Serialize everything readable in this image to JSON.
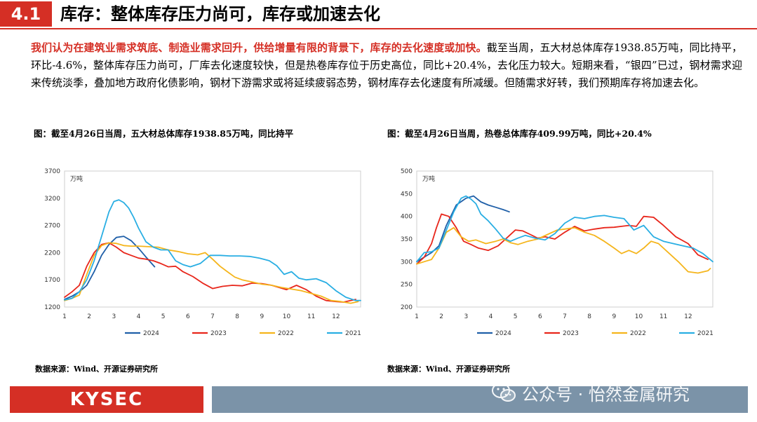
{
  "header": {
    "section_number": "4.1",
    "title": "库存：整体库存压力尚可，库存或加速去化"
  },
  "summary": {
    "highlight": "我们认为在建筑业需求筑底、制造业需求回升，供给增量有限的背景下，库存的去化速度或加快。",
    "body": "截至当周，五大材总体库存1938.85万吨，同比持平，环比-4.6%，整体库存压力尚可，厂库去化速度较快，但是热卷库存位于历史高位，同比+20.4%，去化压力较大。短期来看，“银四”已过，钢材需求迎来传统淡季，叠加地方政府化债影响，钢材下游需求或将延续疲弱态势，钢材库存去化速度有所减缓。但随需求好转，我们预期库存将加速去化。"
  },
  "figures": [
    {
      "caption": "图：截至4月26日当周，五大材总体库存1938.85万吨，同比持平",
      "source": "数据来源：Wind、开源证券研究所"
    },
    {
      "caption": "图：截至4月26日当周，热卷总体库存409.99万吨，同比+20.4%",
      "source": "数据来源：Wind、开源证券研究所"
    }
  ],
  "colors": {
    "accent": "#d52f25",
    "footer_right": "#7b93a8",
    "s2024": "#1f5fa8",
    "s2023": "#e8261b",
    "s2022": "#f5b51c",
    "s2021": "#29aee3"
  },
  "footer": {
    "logo": "KYSEC",
    "watermark": "公众号 · 怡然金属研究",
    "watermark_icon": "wechat-icon"
  },
  "chart_data": [
    {
      "type": "line",
      "title": "五大材总体库存",
      "ylabel": "万吨",
      "ylim": [
        1200,
        3700
      ],
      "yticks": [
        1200,
        1700,
        2200,
        2700,
        3200,
        3700
      ],
      "xlim": [
        1,
        13
      ],
      "xticks": [
        1,
        2,
        3,
        4,
        5,
        6,
        7,
        8,
        9,
        10,
        11,
        12
      ],
      "series": [
        {
          "name": "2024",
          "color": "#1f5fa8",
          "x": [
            1,
            1.3,
            1.6,
            1.9,
            2.2,
            2.5,
            2.8,
            3.1,
            3.4,
            3.7,
            4.0,
            4.3,
            4.65
          ],
          "y": [
            1340,
            1400,
            1480,
            1600,
            1850,
            2150,
            2350,
            2480,
            2500,
            2420,
            2280,
            2120,
            1940
          ]
        },
        {
          "name": "2023",
          "color": "#e8261b",
          "x": [
            1,
            1.3,
            1.6,
            1.9,
            2.2,
            2.5,
            2.8,
            3.1,
            3.4,
            3.7,
            4.0,
            4.3,
            4.6,
            4.9,
            5.2,
            5.5,
            5.8,
            6.2,
            6.6,
            7.0,
            7.4,
            7.8,
            8.2,
            8.6,
            9.0,
            9.4,
            9.7,
            10.0,
            10.4,
            10.8,
            11.2,
            11.6,
            12.0,
            12.3,
            12.8
          ],
          "y": [
            1380,
            1480,
            1600,
            1950,
            2200,
            2350,
            2380,
            2300,
            2200,
            2150,
            2100,
            2080,
            2050,
            2000,
            1940,
            1950,
            1850,
            1760,
            1640,
            1540,
            1580,
            1600,
            1590,
            1640,
            1630,
            1600,
            1560,
            1520,
            1600,
            1520,
            1400,
            1320,
            1300,
            1290,
            1340
          ]
        },
        {
          "name": "2022",
          "color": "#f5b51c",
          "x": [
            1,
            1.3,
            1.6,
            1.9,
            2.2,
            2.5,
            2.8,
            3.1,
            3.4,
            3.7,
            4.0,
            4.4,
            4.8,
            5.2,
            5.6,
            6.0,
            6.4,
            6.7,
            7.0,
            7.3,
            7.6,
            7.9,
            8.2,
            8.6,
            9.0,
            9.4,
            9.8,
            10.2,
            10.6,
            11.0,
            11.4,
            11.8,
            12.2,
            12.6,
            12.9
          ],
          "y": [
            1320,
            1360,
            1420,
            1800,
            2150,
            2330,
            2380,
            2370,
            2330,
            2320,
            2320,
            2310,
            2300,
            2250,
            2220,
            2180,
            2160,
            2200,
            2080,
            1950,
            1850,
            1750,
            1700,
            1660,
            1620,
            1600,
            1560,
            1530,
            1500,
            1450,
            1400,
            1320,
            1300,
            1270,
            1300
          ]
        },
        {
          "name": "2021",
          "color": "#29aee3",
          "x": [
            1,
            1.3,
            1.6,
            1.9,
            2.2,
            2.5,
            2.8,
            3.0,
            3.2,
            3.4,
            3.6,
            3.8,
            4.0,
            4.3,
            4.6,
            4.9,
            5.2,
            5.5,
            5.8,
            6.1,
            6.5,
            6.9,
            7.3,
            7.7,
            8.1,
            8.5,
            8.9,
            9.3,
            9.6,
            9.9,
            10.2,
            10.5,
            10.8,
            11.2,
            11.6,
            12.0,
            12.4,
            12.8,
            13.0
          ],
          "y": [
            1330,
            1360,
            1480,
            1700,
            2050,
            2500,
            2950,
            3140,
            3170,
            3120,
            3020,
            2850,
            2650,
            2400,
            2300,
            2250,
            2250,
            2050,
            1980,
            1940,
            2000,
            2150,
            2150,
            2140,
            2140,
            2130,
            2100,
            2050,
            1960,
            1800,
            1850,
            1730,
            1700,
            1720,
            1650,
            1500,
            1380,
            1320,
            1320
          ]
        }
      ]
    },
    {
      "type": "line",
      "title": "热卷总体库存",
      "ylabel": "万吨",
      "ylim": [
        200,
        500
      ],
      "yticks": [
        200,
        250,
        300,
        350,
        400,
        450,
        500
      ],
      "xlim": [
        1,
        13
      ],
      "xticks": [
        1,
        2,
        3,
        4,
        5,
        6,
        7,
        8,
        9,
        10,
        11,
        12
      ],
      "series": [
        {
          "name": "2024",
          "color": "#1f5fa8",
          "x": [
            1,
            1.3,
            1.6,
            1.9,
            2.2,
            2.6,
            3.0,
            3.3,
            3.6,
            3.9,
            4.2,
            4.5,
            4.75
          ],
          "y": [
            300,
            310,
            320,
            335,
            380,
            425,
            440,
            445,
            432,
            425,
            420,
            415,
            410
          ]
        },
        {
          "name": "2023",
          "color": "#e8261b",
          "x": [
            1,
            1.3,
            1.6,
            1.8,
            2.0,
            2.3,
            2.6,
            2.9,
            3.2,
            3.5,
            3.9,
            4.3,
            4.7,
            5.0,
            5.3,
            5.6,
            5.9,
            6.2,
            6.6,
            7.0,
            7.4,
            7.8,
            8.2,
            8.6,
            9.0,
            9.3,
            9.6,
            9.9,
            10.2,
            10.6,
            11.0,
            11.5,
            12.0,
            12.4,
            12.8
          ],
          "y": [
            295,
            310,
            340,
            375,
            405,
            400,
            375,
            345,
            338,
            330,
            325,
            335,
            355,
            370,
            368,
            360,
            352,
            355,
            350,
            365,
            378,
            368,
            372,
            375,
            376,
            378,
            380,
            378,
            400,
            398,
            380,
            355,
            340,
            315,
            305
          ]
        },
        {
          "name": "2022",
          "color": "#f5b51c",
          "x": [
            1,
            1.3,
            1.6,
            1.9,
            2.2,
            2.5,
            2.8,
            3.1,
            3.4,
            3.8,
            4.2,
            4.5,
            4.8,
            5.1,
            5.5,
            5.9,
            6.3,
            6.7,
            7.0,
            7.4,
            7.8,
            8.2,
            8.6,
            9.0,
            9.3,
            9.6,
            9.9,
            10.2,
            10.5,
            10.8,
            11.2,
            11.6,
            12.0,
            12.4,
            12.8,
            12.9
          ],
          "y": [
            295,
            300,
            305,
            330,
            365,
            375,
            355,
            345,
            348,
            340,
            345,
            350,
            342,
            338,
            345,
            350,
            360,
            370,
            372,
            375,
            365,
            358,
            345,
            330,
            318,
            325,
            318,
            330,
            345,
            340,
            320,
            300,
            278,
            275,
            280,
            285
          ]
        },
        {
          "name": "2021",
          "color": "#29aee3",
          "x": [
            1,
            1.3,
            1.6,
            1.9,
            2.2,
            2.5,
            2.8,
            3.0,
            3.2,
            3.4,
            3.6,
            3.9,
            4.2,
            4.5,
            4.8,
            5.1,
            5.4,
            5.8,
            6.2,
            6.6,
            7.0,
            7.4,
            7.8,
            8.2,
            8.6,
            9.0,
            9.4,
            9.8,
            10.2,
            10.6,
            11.0,
            11.4,
            11.8,
            12.2,
            12.6,
            13.0
          ],
          "y": [
            300,
            320,
            322,
            330,
            370,
            410,
            440,
            445,
            438,
            428,
            405,
            390,
            372,
            352,
            345,
            352,
            358,
            352,
            348,
            362,
            385,
            398,
            395,
            400,
            402,
            398,
            395,
            370,
            380,
            355,
            345,
            340,
            335,
            330,
            318,
            300
          ]
        }
      ]
    }
  ]
}
